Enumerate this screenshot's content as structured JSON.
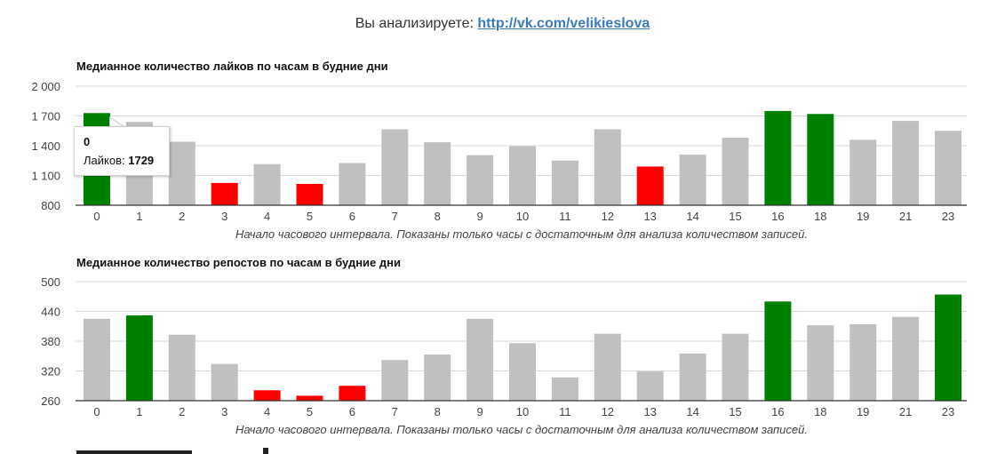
{
  "header": {
    "prefix": "Вы анализируете:",
    "link_text": "http://vk.com/velikieslova"
  },
  "colors": {
    "high": "#008000",
    "low": "#ff0000",
    "normal": "#c0c0c0",
    "grid": "#d9d9d9",
    "axis": "#333333"
  },
  "tooltip": {
    "category": "0",
    "label": "Лайков:",
    "value": "1729"
  },
  "chart_data": [
    {
      "type": "bar",
      "title": "Медианное количество лайков по часам в будние дни",
      "xlabel": "Начало часового интервала. Показаны только часы с достаточным для анализа количеством записей.",
      "ylim": [
        800,
        2000
      ],
      "yticks": [
        800,
        1100,
        1400,
        1700,
        2000
      ],
      "ytick_labels": [
        "800",
        "1 100",
        "1 400",
        "1 700",
        "2 000"
      ],
      "grid": true,
      "categories": [
        "0",
        "1",
        "2",
        "3",
        "4",
        "5",
        "6",
        "7",
        "8",
        "9",
        "10",
        "11",
        "12",
        "13",
        "14",
        "15",
        "16",
        "18",
        "19",
        "21",
        "23"
      ],
      "values": [
        1729,
        1640,
        1440,
        1025,
        1215,
        1015,
        1225,
        1565,
        1435,
        1305,
        1395,
        1250,
        1565,
        1190,
        1310,
        1480,
        1750,
        1720,
        1460,
        1650,
        1550
      ],
      "bar_levels": [
        "high",
        "normal",
        "normal",
        "low",
        "normal",
        "low",
        "normal",
        "normal",
        "normal",
        "normal",
        "normal",
        "normal",
        "normal",
        "low",
        "normal",
        "normal",
        "high",
        "high",
        "normal",
        "normal",
        "normal"
      ]
    },
    {
      "type": "bar",
      "title": "Медианное количество репостов по часам в будние дни",
      "xlabel": "Начало часового интервала. Показаны только часы с достаточным для анализа количеством записей.",
      "ylim": [
        260,
        500
      ],
      "yticks": [
        260,
        320,
        380,
        440,
        500
      ],
      "ytick_labels": [
        "260",
        "320",
        "380",
        "440",
        "500"
      ],
      "grid": true,
      "categories": [
        "0",
        "1",
        "2",
        "3",
        "4",
        "5",
        "6",
        "7",
        "8",
        "9",
        "10",
        "11",
        "12",
        "13",
        "14",
        "15",
        "16",
        "18",
        "19",
        "21",
        "23"
      ],
      "values": [
        425,
        432,
        393,
        334,
        281,
        270,
        290,
        342,
        353,
        425,
        376,
        307,
        395,
        319,
        355,
        395,
        460,
        412,
        414,
        429,
        474
      ],
      "bar_levels": [
        "normal",
        "high",
        "normal",
        "normal",
        "low",
        "low",
        "low",
        "normal",
        "normal",
        "normal",
        "normal",
        "normal",
        "normal",
        "normal",
        "normal",
        "normal",
        "high",
        "normal",
        "normal",
        "normal",
        "high"
      ]
    }
  ]
}
